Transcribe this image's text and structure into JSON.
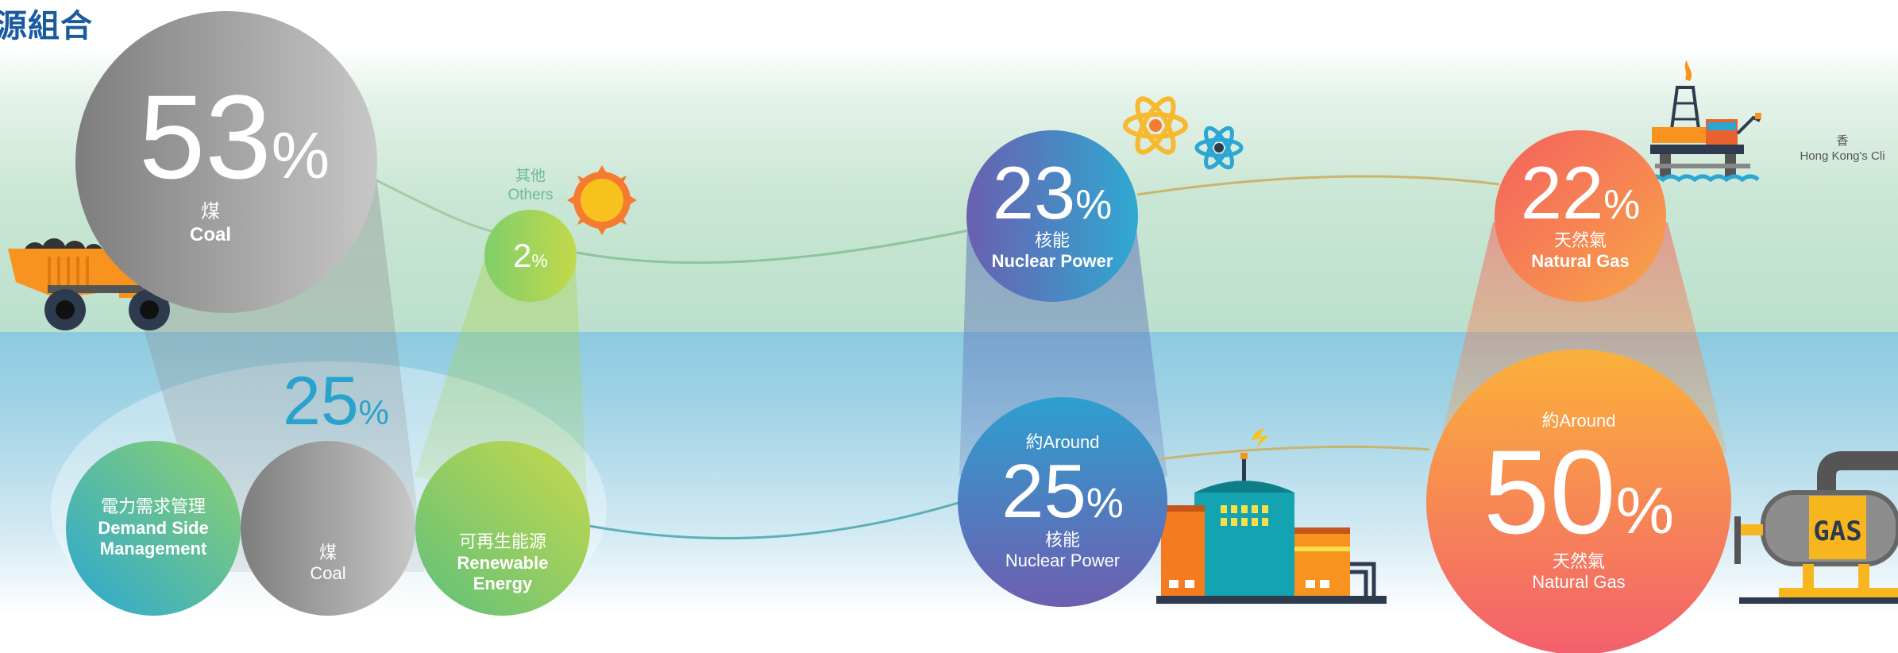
{
  "page": {
    "title": "源組合",
    "side_note_zh": "香",
    "side_note_en": "Hong Kong's Cli"
  },
  "chart_data": {
    "type": "pie",
    "title": "",
    "series": [
      {
        "values": [
          {
            "label_zh": "煤",
            "label_en": "Coal",
            "value": 53,
            "display": "53"
          },
          {
            "label_zh": "其他",
            "label_en": "Others",
            "value": 2,
            "display": "2"
          },
          {
            "label_zh": "核能",
            "label_en": "Nuclear Power",
            "value": 23,
            "display": "23"
          },
          {
            "label_zh": "天然氣",
            "label_en": "Natural Gas",
            "value": 22,
            "display": "22"
          }
        ]
      },
      {
        "values": [
          {
            "label_zh": "電力需求管理 / 煤 / 可再生能源",
            "label_en": "Demand Side Management / Coal / Renewable Energy",
            "value": 25,
            "display": "25"
          },
          {
            "label_zh": "核能",
            "label_en": "Nuclear Power",
            "value": 25,
            "display": "25",
            "prefix": "約Around"
          },
          {
            "label_zh": "天然氣",
            "label_en": "Natural Gas",
            "value": 50,
            "display": "50",
            "prefix": "約Around"
          }
        ]
      }
    ],
    "unit": "%",
    "components": [
      {
        "label_zh": "電力需求管理",
        "label_en_1": "Demand Side",
        "label_en_2": "Management"
      },
      {
        "label_zh": "煤",
        "label_en": "Coal"
      },
      {
        "label_zh": "可再生能源",
        "label_en_1": "Renewable",
        "label_en_2": "Energy"
      }
    ],
    "grid": false
  },
  "icons": {
    "coal_truck": "coal-truck-icon",
    "sun": "sun-icon",
    "atom": "atom-icon",
    "oil_rig": "oil-rig-icon",
    "coal_cart": "coal-cart-icon",
    "light_bulb": "light-bulb-icon",
    "nuclear_plant": "nuclear-plant-icon",
    "gas_tank": "gas-tank-icon",
    "gas_tank_text": "GAS"
  },
  "colors": {
    "coal": "#9a9a9a",
    "nuclear": "#5b6fb6",
    "gas": "#f47b5a",
    "others": "#a8d24f",
    "title": "#1a5a9e",
    "pct_25": "#2aa3cc"
  }
}
